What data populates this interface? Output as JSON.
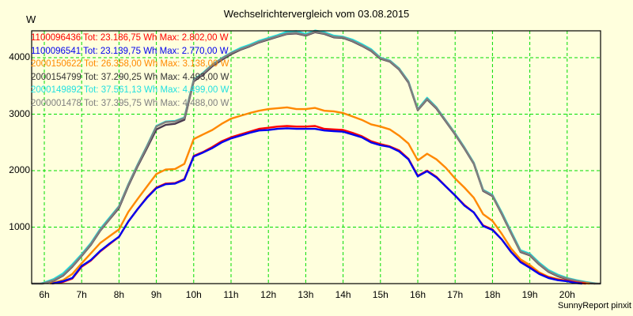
{
  "header": {
    "title": "Wechselrichtervergleich vom 03.08.2015",
    "unit": "W"
  },
  "footer": {
    "credit": "SunnyReport pinxit"
  },
  "colors": {
    "background": "#ffffdd",
    "grid": "#00dd00",
    "axis": "#000000"
  },
  "chart_data": {
    "type": "line",
    "title": "Wechselrichtervergleich vom 03.08.2015",
    "xlabel": "",
    "ylabel": "W",
    "xlim": [
      5.66,
      20.9
    ],
    "ylim": [
      0,
      4480
    ],
    "grid": true,
    "legend_position": "top-left inside",
    "x_ticks": [
      {
        "value": 6,
        "label": "6h"
      },
      {
        "value": 7,
        "label": "7h"
      },
      {
        "value": 8,
        "label": "8h"
      },
      {
        "value": 9,
        "label": "9h"
      },
      {
        "value": 10,
        "label": "10h"
      },
      {
        "value": 11,
        "label": "11h"
      },
      {
        "value": 12,
        "label": "12h"
      },
      {
        "value": 13,
        "label": "13h"
      },
      {
        "value": 14,
        "label": "14h"
      },
      {
        "value": 15,
        "label": "15h"
      },
      {
        "value": 16,
        "label": "16h"
      },
      {
        "value": 17,
        "label": "17h"
      },
      {
        "value": 18,
        "label": "18h"
      },
      {
        "value": 19,
        "label": "19h"
      },
      {
        "value": 20,
        "label": "20h"
      }
    ],
    "y_ticks": [
      {
        "value": 1000,
        "label": "1000"
      },
      {
        "value": 2000,
        "label": "2000"
      },
      {
        "value": 3000,
        "label": "3000"
      },
      {
        "value": 4000,
        "label": "4000"
      }
    ],
    "series": [
      {
        "name": "1100096436",
        "legend": {
          "id": "1100096436",
          "tot": "Tot: 23.186,75 Wh",
          "max": "Max: 2.802,00 W"
        },
        "color": "#ff0000",
        "x": [
          6.2,
          6.5,
          6.75,
          7.0,
          7.25,
          7.5,
          7.75,
          8.0,
          8.25,
          8.5,
          8.75,
          9.0,
          9.25,
          9.5,
          9.75,
          10.0,
          10.25,
          10.5,
          10.75,
          11.0,
          11.25,
          11.5,
          11.75,
          12.0,
          12.25,
          12.5,
          12.75,
          13.0,
          13.25,
          13.5,
          13.75,
          14.0,
          14.25,
          14.5,
          14.75,
          15.0,
          15.25,
          15.5,
          15.75,
          16.0,
          16.25,
          16.5,
          16.75,
          17.0,
          17.25,
          17.5,
          17.75,
          18.0,
          18.25,
          18.5,
          18.75,
          19.0,
          19.25,
          19.5,
          19.75,
          20.0,
          20.25,
          20.5
        ],
        "values": [
          0,
          30,
          90,
          300,
          410,
          570,
          700,
          830,
          1100,
          1320,
          1530,
          1700,
          1770,
          1780,
          1850,
          2260,
          2330,
          2420,
          2520,
          2590,
          2640,
          2690,
          2740,
          2760,
          2780,
          2790,
          2780,
          2780,
          2790,
          2740,
          2730,
          2720,
          2670,
          2610,
          2520,
          2470,
          2430,
          2360,
          2210,
          1910,
          2000,
          1890,
          1720,
          1560,
          1390,
          1260,
          1030,
          960,
          780,
          560,
          390,
          290,
          180,
          110,
          70,
          50,
          20,
          0
        ]
      },
      {
        "name": "1100096541",
        "legend": {
          "id": "1100096541",
          "tot": "Tot: 23.139,75 Wh",
          "max": "Max: 2.770,00 W"
        },
        "color": "#0000ee",
        "x": [
          6.2,
          6.5,
          6.75,
          7.0,
          7.25,
          7.5,
          7.75,
          8.0,
          8.25,
          8.5,
          8.75,
          9.0,
          9.25,
          9.5,
          9.75,
          10.0,
          10.25,
          10.5,
          10.75,
          11.0,
          11.25,
          11.5,
          11.75,
          12.0,
          12.25,
          12.5,
          12.75,
          13.0,
          13.25,
          13.5,
          13.75,
          14.0,
          14.25,
          14.5,
          14.75,
          15.0,
          15.25,
          15.5,
          15.75,
          16.0,
          16.25,
          16.5,
          16.75,
          17.0,
          17.25,
          17.5,
          17.75,
          18.0,
          18.25,
          18.5,
          18.75,
          19.0,
          19.25,
          19.5,
          19.75,
          20.0,
          20.25,
          20.4
        ],
        "values": [
          0,
          40,
          100,
          310,
          420,
          580,
          710,
          830,
          1100,
          1320,
          1520,
          1690,
          1760,
          1770,
          1840,
          2250,
          2320,
          2400,
          2500,
          2570,
          2620,
          2670,
          2710,
          2720,
          2740,
          2750,
          2740,
          2740,
          2740,
          2710,
          2700,
          2690,
          2640,
          2590,
          2500,
          2450,
          2420,
          2340,
          2200,
          1900,
          1990,
          1880,
          1720,
          1560,
          1380,
          1260,
          1020,
          950,
          780,
          560,
          380,
          280,
          170,
          100,
          60,
          40,
          10,
          0
        ]
      },
      {
        "name": "2000150622",
        "legend": {
          "id": "2000150622",
          "tot": "Tot: 26.358,00 Wh",
          "max": "Max: 3.138,00 W"
        },
        "color": "#ff8800",
        "x": [
          6.15,
          6.5,
          6.75,
          7.0,
          7.25,
          7.5,
          7.75,
          8.0,
          8.25,
          8.5,
          8.75,
          9.0,
          9.25,
          9.5,
          9.75,
          10.0,
          10.25,
          10.5,
          10.75,
          11.0,
          11.25,
          11.5,
          11.75,
          12.0,
          12.5,
          12.75,
          13.0,
          13.25,
          13.5,
          13.75,
          14.0,
          14.25,
          14.5,
          14.75,
          15.0,
          15.25,
          15.5,
          15.75,
          16.0,
          16.25,
          16.5,
          16.75,
          17.0,
          17.25,
          17.5,
          17.75,
          18.0,
          18.25,
          18.5,
          18.75,
          19.0,
          19.25,
          19.5,
          19.75,
          20.0,
          20.25,
          20.6
        ],
        "values": [
          0,
          60,
          170,
          360,
          540,
          720,
          840,
          960,
          1270,
          1500,
          1720,
          1940,
          2020,
          2030,
          2120,
          2560,
          2640,
          2720,
          2830,
          2920,
          2970,
          3020,
          3060,
          3090,
          3120,
          3090,
          3090,
          3110,
          3060,
          3050,
          3020,
          2960,
          2900,
          2820,
          2780,
          2730,
          2620,
          2480,
          2180,
          2300,
          2200,
          2050,
          1860,
          1700,
          1520,
          1230,
          1110,
          880,
          620,
          430,
          330,
          200,
          120,
          80,
          50,
          20,
          0
        ]
      },
      {
        "name": "2000154799",
        "legend": {
          "id": "2000154799",
          "tot": "Tot: 37.290,25 Wh",
          "max": "Max: 4.493,00 W"
        },
        "color": "#4a3a4e",
        "x": [
          5.95,
          6.25,
          6.5,
          6.75,
          7.0,
          7.25,
          7.5,
          7.75,
          8.0,
          8.25,
          8.5,
          8.75,
          9.0,
          9.25,
          9.5,
          9.75,
          10.0,
          10.25,
          10.5,
          10.75,
          11.0,
          11.25,
          11.5,
          11.75,
          12.0,
          12.25,
          12.5,
          12.75,
          13.0,
          13.25,
          13.5,
          13.75,
          14.0,
          14.25,
          14.5,
          14.75,
          15.0,
          15.25,
          15.5,
          15.75,
          16.0,
          16.25,
          16.5,
          16.75,
          17.0,
          17.25,
          17.5,
          17.75,
          18.0,
          18.25,
          18.5,
          18.75,
          19.0,
          19.25,
          19.5,
          19.75,
          20.0,
          20.25,
          20.5,
          20.75
        ],
        "values": [
          0,
          50,
          140,
          300,
          490,
          690,
          940,
          1140,
          1340,
          1730,
          2080,
          2400,
          2730,
          2810,
          2830,
          2900,
          3580,
          3700,
          3850,
          3960,
          4060,
          4140,
          4200,
          4270,
          4320,
          4370,
          4420,
          4430,
          4390,
          4450,
          4420,
          4360,
          4350,
          4290,
          4210,
          4120,
          3980,
          3930,
          3790,
          3560,
          3070,
          3260,
          3100,
          2870,
          2640,
          2390,
          2120,
          1640,
          1550,
          1230,
          890,
          560,
          500,
          340,
          210,
          130,
          80,
          40,
          10,
          0
        ]
      },
      {
        "name": "2000149892",
        "legend": {
          "id": "2000149892",
          "tot": "Tot: 37.561,13 Wh",
          "max": "Max: 4.499,00 W"
        },
        "color": "#22dddd",
        "x": [
          5.9,
          6.0,
          6.25,
          6.5,
          6.75,
          7.0,
          7.25,
          7.5,
          7.75,
          8.0,
          8.25,
          8.5,
          8.75,
          9.0,
          9.25,
          9.5,
          9.75,
          10.0,
          10.25,
          10.5,
          10.75,
          11.0,
          11.25,
          11.5,
          11.75,
          12.0,
          12.25,
          12.5,
          12.75,
          13.0,
          13.25,
          13.5,
          13.75,
          14.0,
          14.25,
          14.5,
          14.75,
          15.0,
          15.25,
          15.5,
          15.75,
          16.0,
          16.25,
          16.5,
          16.75,
          17.0,
          17.25,
          17.5,
          17.75,
          18.0,
          18.25,
          18.5,
          18.75,
          19.0,
          19.25,
          19.5,
          19.75,
          20.0,
          20.25,
          20.5,
          20.8
        ],
        "values": [
          0,
          20,
          80,
          180,
          340,
          520,
          720,
          970,
          1170,
          1370,
          1760,
          2110,
          2440,
          2790,
          2870,
          2880,
          2940,
          3610,
          3730,
          3880,
          3990,
          4090,
          4170,
          4230,
          4300,
          4350,
          4400,
          4460,
          4470,
          4420,
          4480,
          4450,
          4390,
          4370,
          4320,
          4240,
          4150,
          4000,
          3950,
          3810,
          3580,
          3090,
          3290,
          3120,
          2890,
          2660,
          2410,
          2140,
          1660,
          1570,
          1260,
          920,
          590,
          530,
          370,
          240,
          160,
          100,
          60,
          30,
          0
        ]
      },
      {
        "name": "2000001478",
        "legend": {
          "id": "2000001478",
          "tot": "Tot: 37.395,75 Wh",
          "max": "Max: 4.488,00 W"
        },
        "color": "#808080",
        "x": [
          5.66,
          5.95,
          6.0,
          6.25,
          6.5,
          6.75,
          7.0,
          7.25,
          7.5,
          7.75,
          8.0,
          8.25,
          8.5,
          8.75,
          9.0,
          9.25,
          9.5,
          9.75,
          10.0,
          10.25,
          10.5,
          10.75,
          11.0,
          11.25,
          11.5,
          11.75,
          12.0,
          12.25,
          12.5,
          12.75,
          13.0,
          13.25,
          13.5,
          13.75,
          14.0,
          14.25,
          14.5,
          14.75,
          15.0,
          15.25,
          15.5,
          15.75,
          16.0,
          16.25,
          16.5,
          16.75,
          17.0,
          17.25,
          17.5,
          17.75,
          18.0,
          18.25,
          18.5,
          18.75,
          19.0,
          19.25,
          19.5,
          19.75,
          20.0,
          20.25,
          20.5,
          20.75,
          20.9
        ],
        "values": [
          0,
          0,
          10,
          60,
          150,
          310,
          500,
          700,
          950,
          1150,
          1360,
          1750,
          2100,
          2430,
          2780,
          2860,
          2870,
          2930,
          3600,
          3720,
          3870,
          3980,
          4080,
          4150,
          4210,
          4280,
          4330,
          4380,
          4430,
          4440,
          4400,
          4460,
          4430,
          4370,
          4360,
          4300,
          4220,
          4130,
          3990,
          3940,
          3800,
          3570,
          3080,
          3270,
          3110,
          2880,
          2650,
          2400,
          2130,
          1650,
          1560,
          1240,
          900,
          570,
          510,
          350,
          220,
          140,
          90,
          50,
          20,
          0,
          0
        ]
      }
    ]
  }
}
